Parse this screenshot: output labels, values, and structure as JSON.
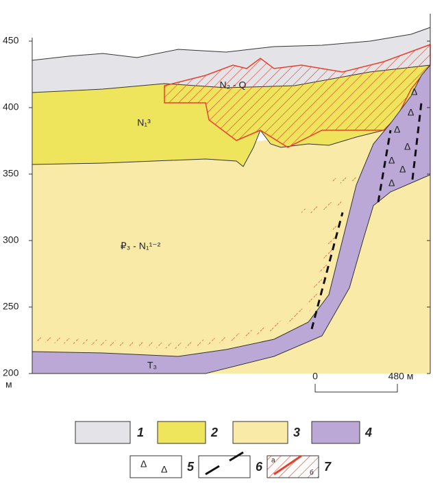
{
  "axis": {
    "ticks": [
      "450",
      "400",
      "350",
      "300",
      "250",
      "200"
    ],
    "unit": "м"
  },
  "layers": {
    "quaternary": "N₂ - Q",
    "upper_miocene": "N₁³",
    "paleogene_miocene": "₽₃ - N₁¹⁻²",
    "triassic": "T₃"
  },
  "scale_bar": {
    "start": "0",
    "end": "480 м"
  },
  "legend": {
    "items": [
      "1",
      "2",
      "3",
      "4",
      "5",
      "6",
      "7"
    ],
    "sub_a": "а",
    "sub_b": "б"
  }
}
